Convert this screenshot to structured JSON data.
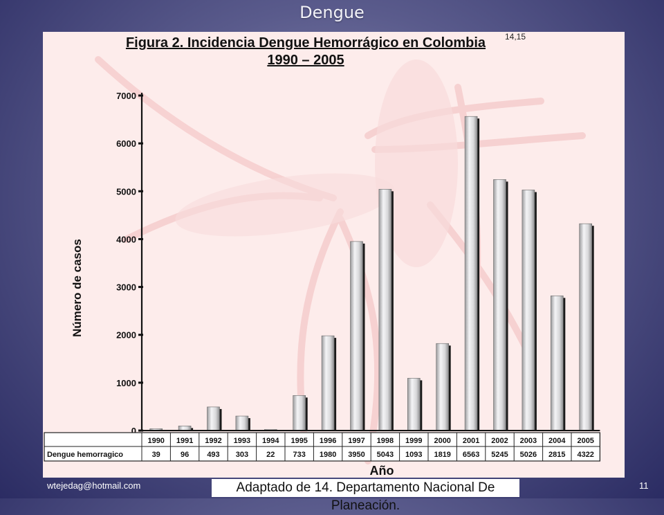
{
  "slide": {
    "title": "Dengue",
    "email": "wtejedag@hotmail.com",
    "source": "Adaptado de 14. Departamento Nacional De Planeación.",
    "page_number": "11"
  },
  "chart_data": {
    "type": "bar",
    "title": "Figura 2. Incidencia Dengue Hemorrágico en Colombia",
    "title_superscript": "14,15",
    "subtitle": "1990 – 2005",
    "xlabel": "Año",
    "ylabel": "Número de casos",
    "ylim": [
      0,
      7000
    ],
    "yticks": [
      0,
      1000,
      2000,
      3000,
      4000,
      5000,
      6000,
      7000
    ],
    "categories": [
      "1990",
      "1991",
      "1992",
      "1993",
      "1994",
      "1995",
      "1996",
      "1997",
      "1998",
      "1999",
      "2000",
      "2001",
      "2002",
      "2003",
      "2004",
      "2005"
    ],
    "series": [
      {
        "name": "Dengue hemorragico",
        "values": [
          39,
          96,
          493,
          303,
          22,
          733,
          1980,
          3950,
          5043,
          1093,
          1819,
          6563,
          5245,
          5026,
          2815,
          4322
        ]
      }
    ],
    "data_table": true,
    "grid": false,
    "colors": {
      "bar": "#e8e8ea",
      "bar_shadow": "#1a1a1a",
      "panel": "#fdeceb"
    }
  }
}
